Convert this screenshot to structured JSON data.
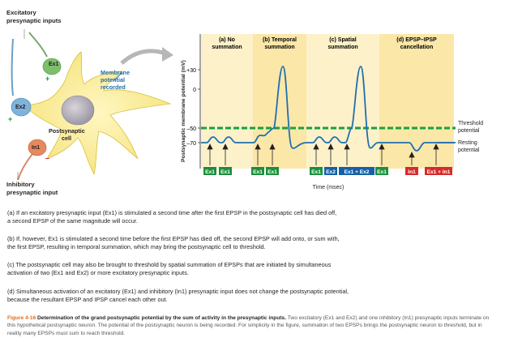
{
  "neuron": {
    "excitatory_title": [
      "Excitatory",
      "presynaptic inputs"
    ],
    "ex1": "Ex1",
    "ex2": "Ex2",
    "in1": "In1",
    "plus": "+",
    "minus": "–",
    "postsynaptic": [
      "Postsynaptic",
      "cell"
    ],
    "membrane": [
      "Membrane",
      "potential",
      "recorded"
    ],
    "inhibitory_title": [
      "Inhibitory",
      "presynaptic input"
    ]
  },
  "graph": {
    "ylabel": "Postsynaptic membrane potential (mV)",
    "xlabel": "Time (msec)",
    "ticks": [
      "+30",
      "0",
      "–50",
      "–70"
    ],
    "threshold_label": [
      "Threshold",
      "potential"
    ],
    "resting_label": [
      "Resting",
      "potential"
    ],
    "panels": [
      {
        "letter": "(a)",
        "name": "No",
        "name2": "summation"
      },
      {
        "letter": "(b)",
        "name": "Temporal",
        "name2": "summation"
      },
      {
        "letter": "(c)",
        "name": "Spatial",
        "name2": "summation"
      },
      {
        "letter": "(d)",
        "name": "EPSP–IPSP",
        "name2": "cancellation"
      }
    ],
    "stimuli": [
      "Ex1",
      "Ex1",
      "Ex1",
      "Ex1",
      "Ex1",
      "Ex2",
      "Ex1 + Ex2",
      "Ex1",
      "In1",
      "Ex1 + In1"
    ],
    "colors": {
      "excitatory": "#1a8f3c",
      "ex2": "#1560a8",
      "inhibitory": "#d62b2b",
      "threshold": "#1aa03e",
      "trace": "#1f6fb0"
    }
  },
  "captions": {
    "a": [
      "(a) If an excitatory presynaptic input (Ex1) is stimulated a second time after the first EPSP in the postsynaptic cell has died off,",
      "a second EPSP of the same magnitude will occur."
    ],
    "b": [
      "(b) If, however, Ex1 is stimulated a second time before the first EPSP has died off, the second EPSP will add onto, or sum with,",
      "the first EPSP, resulting in temporal summation, which may bring the postsynaptic cell to threshold."
    ],
    "c": [
      "(c) The postsynaptic cell may also be brought to threshold by spatial summation of EPSPs that are initiated by simultaneous",
      "activation of two (Ex1 and Ex2) or more excitatory presynaptic inputs."
    ],
    "d": [
      "(d) Simultaneous activation of an excitatory (Ex1) and inhibitory (In1) presynaptic input does not change the postsynaptic potential,",
      "because the resultant EPSP and IPSP cancel each other out."
    ]
  },
  "figure_caption": {
    "label": "Figure 4-16",
    "title": "Determination of the grand postsynaptic potential by the sum of activity in the presynaptic inputs.",
    "body": "Two excitatory (Ex1 and Ex2) and one inhibitory (In1) presynaptic inputs terminate on this hypothetical postsynaptic neuron. The potential of the postsynaptic neuron is being recorded. For simplicity in the figure, summation of two EPSPs brings the postsynaptic neuron to threshold, but in reality many EPSPs must sum to reach threshold."
  }
}
